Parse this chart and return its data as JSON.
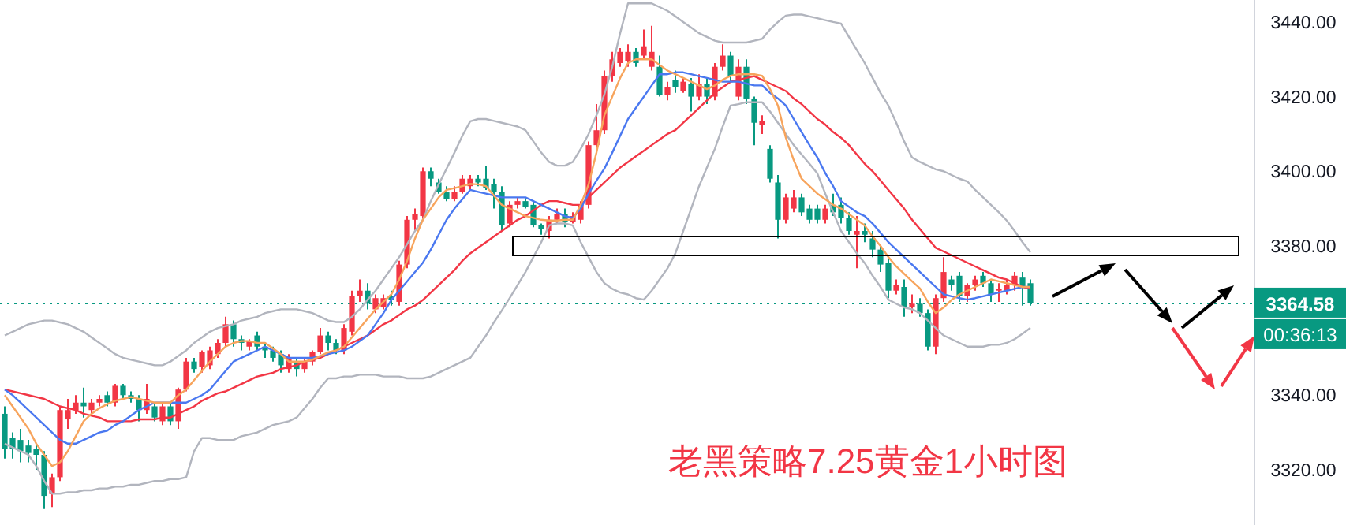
{
  "chart_data": {
    "type": "candlestick",
    "categories": [
      null,
      null,
      null,
      null,
      null,
      null,
      null,
      null,
      null,
      null,
      null,
      null,
      null,
      null,
      null,
      null,
      null,
      null,
      null,
      null,
      null,
      null,
      null,
      null,
      null,
      null,
      null,
      null,
      null,
      null,
      null,
      null,
      null,
      null,
      null,
      null,
      null,
      null,
      null,
      null,
      null,
      null,
      null,
      null,
      null,
      null,
      null,
      null,
      null,
      null,
      null,
      null,
      null,
      null,
      null,
      null,
      null,
      null,
      null,
      null,
      null,
      null,
      null,
      null,
      null,
      null,
      null,
      null,
      null,
      null,
      null,
      null,
      null,
      null,
      null,
      null,
      null,
      null,
      null,
      null,
      null,
      null,
      null,
      null,
      null,
      null,
      null,
      null,
      null,
      null,
      null,
      null,
      null,
      null,
      null,
      null,
      null,
      null,
      null,
      null,
      null,
      null,
      null,
      null,
      null,
      null,
      null,
      null,
      null,
      null,
      null,
      null,
      null,
      null,
      null,
      null,
      null,
      null,
      null,
      null,
      null,
      null,
      null,
      null,
      null,
      null,
      null,
      null,
      null,
      null,
      null
    ],
    "ohlc": [
      [
        3335,
        3337,
        3323,
        3325.5
      ],
      [
        3328.5,
        3330,
        3323,
        3325.5
      ],
      [
        3328,
        3331,
        3322,
        3325
      ],
      [
        3326.5,
        3328,
        3322,
        3324.5
      ],
      [
        3325.5,
        3327,
        3320,
        3324
      ],
      [
        3324,
        3325,
        3309.5,
        3313
      ],
      [
        3313.5,
        3319,
        3310,
        3318
      ],
      [
        3318,
        3337,
        3317,
        3336
      ],
      [
        3333.5,
        3339,
        3331,
        3336
      ],
      [
        3336,
        3340,
        3335,
        3338
      ],
      [
        3338,
        3342,
        3334,
        3337
      ],
      [
        3336,
        3339,
        3335,
        3338
      ],
      [
        3338,
        3340,
        3337,
        3339
      ],
      [
        3340,
        3341,
        3337,
        3338
      ],
      [
        3338,
        3343,
        3337,
        3342.5
      ],
      [
        3342.5,
        3343,
        3339,
        3340
      ],
      [
        3340,
        3341,
        3338,
        3339
      ],
      [
        3339,
        3340,
        3333,
        3336
      ],
      [
        3336,
        3343,
        3335,
        3339
      ],
      [
        3337,
        3338,
        3333,
        3334
      ],
      [
        3333,
        3338,
        3332,
        3337
      ],
      [
        3337,
        3338,
        3332,
        3333
      ],
      [
        3333,
        3342,
        3331,
        3341.5
      ],
      [
        3341.5,
        3350,
        3341,
        3349
      ],
      [
        3349,
        3350,
        3346,
        3347
      ],
      [
        3347.5,
        3352,
        3346,
        3351.5
      ],
      [
        3348,
        3353,
        3347,
        3352
      ],
      [
        3351,
        3355,
        3350,
        3354
      ],
      [
        3354,
        3361,
        3353,
        3359
      ],
      [
        3359,
        3360,
        3353,
        3355
      ],
      [
        3355,
        3356,
        3352,
        3354
      ],
      [
        3353,
        3355,
        3352,
        3354.5
      ],
      [
        3356,
        3357,
        3352,
        3353
      ],
      [
        3353,
        3354,
        3350,
        3352
      ],
      [
        3352,
        3353,
        3349,
        3350
      ],
      [
        3351,
        3352,
        3346,
        3348
      ],
      [
        3347,
        3351,
        3346,
        3350
      ],
      [
        3349,
        3350,
        3345,
        3347
      ],
      [
        3347,
        3350,
        3346,
        3349
      ],
      [
        3349,
        3352,
        3348,
        3351.5
      ],
      [
        3351.5,
        3358,
        3351,
        3356
      ],
      [
        3356,
        3357,
        3352,
        3354
      ],
      [
        3354,
        3355,
        3351,
        3352
      ],
      [
        3352,
        3359,
        3351,
        3358
      ],
      [
        3357,
        3368,
        3356,
        3366.5
      ],
      [
        3366.5,
        3371,
        3365,
        3368
      ],
      [
        3368,
        3370,
        3363,
        3364.5
      ],
      [
        3363,
        3367,
        3362,
        3366
      ],
      [
        3363.5,
        3367,
        3363,
        3366
      ],
      [
        3366.5,
        3368,
        3364,
        3365.5
      ],
      [
        3365,
        3376,
        3364,
        3375
      ],
      [
        3375,
        3388,
        3374,
        3387
      ],
      [
        3387,
        3390,
        3384,
        3388.5
      ],
      [
        3388,
        3401,
        3387,
        3400
      ],
      [
        3400,
        3401,
        3396,
        3398
      ],
      [
        3397,
        3398,
        3394,
        3394.5
      ],
      [
        3394.5,
        3396,
        3392,
        3392.5
      ],
      [
        3392.5,
        3396,
        3392,
        3394.5
      ],
      [
        3394.5,
        3399,
        3394,
        3398
      ],
      [
        3396,
        3399,
        3395,
        3398
      ],
      [
        3398,
        3399,
        3396,
        3397
      ],
      [
        3398,
        3401.5,
        3395,
        3395.5
      ],
      [
        3396.5,
        3398,
        3390,
        3394.5
      ],
      [
        3394.5,
        3396,
        3384,
        3385.5
      ],
      [
        3386,
        3392,
        3385,
        3391
      ],
      [
        3391,
        3393,
        3390,
        3392
      ],
      [
        3392,
        3393,
        3390,
        3390.5
      ],
      [
        3391,
        3392,
        3385,
        3385.5
      ],
      [
        3385.5,
        3386,
        3383,
        3384.5
      ],
      [
        3384,
        3388,
        3382,
        3387
      ],
      [
        3387,
        3390,
        3386,
        3388.5
      ],
      [
        3388.5,
        3390,
        3385,
        3386.5
      ],
      [
        3386.5,
        3389,
        3386,
        3388
      ],
      [
        3387,
        3392,
        3386,
        3391
      ],
      [
        3391,
        3408,
        3390,
        3407
      ],
      [
        3407,
        3418,
        3406,
        3411
      ],
      [
        3411,
        3427,
        3410,
        3425.5
      ],
      [
        3425.5,
        3432,
        3424,
        3430
      ],
      [
        3429,
        3433,
        3428,
        3432
      ],
      [
        3429.5,
        3434,
        3428,
        3432
      ],
      [
        3432,
        3433,
        3428,
        3429
      ],
      [
        3431,
        3438,
        3430,
        3433.5
      ],
      [
        3428,
        3439,
        3427,
        3432
      ],
      [
        3428,
        3431,
        3420,
        3420.5
      ],
      [
        3420.5,
        3424,
        3419,
        3422.5
      ],
      [
        3424.5,
        3427,
        3421,
        3422.5
      ],
      [
        3421.5,
        3425,
        3421,
        3424
      ],
      [
        3423.5,
        3425,
        3416,
        3420
      ],
      [
        3420,
        3426,
        3419,
        3423.5
      ],
      [
        3423.5,
        3425,
        3418,
        3420
      ],
      [
        3420,
        3429,
        3419,
        3428
      ],
      [
        3428,
        3434,
        3427,
        3431
      ],
      [
        3431,
        3432,
        3424,
        3425.5
      ],
      [
        3420,
        3430,
        3419,
        3428
      ],
      [
        3428,
        3430,
        3418,
        3419.5
      ],
      [
        3419.5,
        3420,
        3407,
        3413
      ],
      [
        3412.5,
        3415,
        3410,
        3413.5
      ],
      [
        3406,
        3407,
        3397,
        3398
      ],
      [
        3397,
        3399,
        3382,
        3387
      ],
      [
        3387,
        3394,
        3386,
        3393
      ],
      [
        3390,
        3395,
        3389,
        3393
      ],
      [
        3393,
        3394,
        3388,
        3389
      ],
      [
        3390,
        3391,
        3386,
        3387
      ],
      [
        3390,
        3391,
        3386,
        3387
      ],
      [
        3387,
        3391,
        3386,
        3390
      ],
      [
        3391,
        3394,
        3388,
        3389
      ],
      [
        3391,
        3393,
        3386,
        3387.5
      ],
      [
        3387.5,
        3389,
        3383,
        3384
      ],
      [
        3383,
        3388,
        3374,
        3384
      ],
      [
        3384,
        3386,
        3381,
        3383
      ],
      [
        3382,
        3384,
        3377,
        3379
      ],
      [
        3379,
        3380,
        3373,
        3375
      ],
      [
        3375.5,
        3377,
        3366,
        3368
      ],
      [
        3368,
        3371,
        3367,
        3369.5
      ],
      [
        3369,
        3371,
        3361,
        3363.5
      ],
      [
        3363.5,
        3367,
        3362,
        3364.5
      ],
      [
        3364.5,
        3366,
        3361,
        3362
      ],
      [
        3362,
        3363,
        3352,
        3353
      ],
      [
        3353,
        3367,
        3351,
        3366
      ],
      [
        3366,
        3377,
        3365,
        3373
      ],
      [
        3371,
        3372,
        3368,
        3369.5
      ],
      [
        3372,
        3373,
        3365,
        3366.5
      ],
      [
        3366.5,
        3370,
        3365,
        3369.5
      ],
      [
        3369.5,
        3372,
        3368,
        3371
      ],
      [
        3372,
        3373,
        3369,
        3370
      ],
      [
        3370,
        3371,
        3365,
        3367
      ],
      [
        3368,
        3370,
        3365,
        3368.5
      ],
      [
        3368,
        3371,
        3367,
        3369.5
      ],
      [
        3369.5,
        3373,
        3368,
        3372
      ],
      [
        3371.5,
        3373,
        3364,
        3369
      ],
      [
        3370,
        3371,
        3364,
        3364.58
      ]
    ],
    "series": [
      {
        "type": "line",
        "color": "#b2b5be",
        "values": [
          3356,
          3357,
          3358,
          3359,
          3359.5,
          3360,
          3360,
          3359.5,
          3359,
          3358,
          3357,
          3355.5,
          3354,
          3352.5,
          3351,
          3350,
          3349.5,
          3349,
          3348.5,
          3348,
          3348,
          3349,
          3350.5,
          3352,
          3354,
          3355.5,
          3357,
          3358,
          3358.5,
          3359,
          3360,
          3360.5,
          3361,
          3362,
          3362.5,
          3363,
          3363,
          3363,
          3362.5,
          3362,
          3361,
          3360,
          3359.6,
          3359.6,
          3361,
          3363,
          3365.6,
          3368,
          3371,
          3374,
          3377,
          3380.5,
          3384,
          3387,
          3392,
          3396.5,
          3400.7,
          3405,
          3409.5,
          3413.4,
          3414,
          3414,
          3413.5,
          3413,
          3412.5,
          3412,
          3411,
          3408,
          3405,
          3402.5,
          3401.5,
          3401.5,
          3402.5,
          3406,
          3410,
          3415,
          3420.6,
          3428,
          3437,
          3445,
          3445,
          3445,
          3445,
          3444,
          3443,
          3441.5,
          3440,
          3438.5,
          3437,
          3436,
          3435,
          3434.5,
          3434.5,
          3434.5,
          3434.5,
          3435,
          3435.5,
          3438,
          3440,
          3441.7,
          3442,
          3442,
          3441.5,
          3441,
          3440.5,
          3440,
          3439.6,
          3436,
          3432.5,
          3429,
          3425,
          3421,
          3417.6,
          3413,
          3408,
          3403.7,
          3402.5,
          3401.5,
          3400.5,
          3400,
          3399,
          3398,
          3397.3,
          3395,
          3393,
          3391,
          3389,
          3386.8,
          3384,
          3381,
          3378.3
        ]
      },
      {
        "type": "line",
        "color": "#b2b5be",
        "values": [
          3327,
          3326,
          3325,
          3324,
          3321,
          3317,
          3313.6,
          3313.6,
          3314,
          3314,
          3314.5,
          3314.5,
          3315,
          3315,
          3315.5,
          3315.5,
          3316,
          3316,
          3316.5,
          3317,
          3317,
          3317.5,
          3317.5,
          3318,
          3325,
          3328.5,
          3328.5,
          3328,
          3328,
          3328,
          3329,
          3329.5,
          3330,
          3331,
          3332,
          3332.5,
          3333,
          3334,
          3336.5,
          3339,
          3342,
          3344.5,
          3344.5,
          3345,
          3345,
          3345.5,
          3345.5,
          3345.5,
          3345,
          3345,
          3345,
          3344.5,
          3344.5,
          3344.5,
          3345,
          3346,
          3347,
          3348,
          3349,
          3350,
          3353,
          3356,
          3359.5,
          3362.7,
          3366,
          3369.5,
          3373,
          3377,
          3381,
          3385.5,
          3386,
          3386,
          3385.5,
          3381,
          3377,
          3373,
          3370,
          3368.5,
          3367.5,
          3367,
          3366,
          3365.6,
          3368,
          3371,
          3374,
          3378,
          3384,
          3390,
          3396,
          3401,
          3406,
          3412,
          3417.6,
          3418,
          3418.5,
          3418.5,
          3418.5,
          3416,
          3413,
          3410,
          3407,
          3404.5,
          3402,
          3399.4,
          3394,
          3389,
          3384,
          3381,
          3378,
          3375.4,
          3372,
          3369,
          3365.6,
          3364.5,
          3363.5,
          3363,
          3362,
          3360,
          3358,
          3356,
          3355,
          3354,
          3353,
          3353,
          3353,
          3353.5,
          3353.5,
          3354,
          3355,
          3356.5,
          3358
        ]
      },
      {
        "type": "line",
        "color": "#f23645",
        "values": [
          3341.5,
          3341,
          3340.5,
          3340,
          3339.5,
          3339,
          3338,
          3337,
          3336.5,
          3336,
          3335,
          3334.5,
          3334,
          3333,
          3333,
          3333,
          3333,
          3333.5,
          3333.5,
          3333.5,
          3334,
          3334,
          3335,
          3336,
          3337,
          3338.5,
          3339.5,
          3340.5,
          3341,
          3342,
          3343,
          3344,
          3345,
          3345.5,
          3346,
          3347,
          3347.5,
          3348,
          3349,
          3349.5,
          3350,
          3351,
          3352,
          3353,
          3354,
          3355,
          3356,
          3357.5,
          3359,
          3360,
          3361.5,
          3363,
          3364,
          3365.5,
          3367.5,
          3369.5,
          3371.5,
          3373.5,
          3376,
          3378,
          3379.5,
          3381,
          3382.5,
          3384,
          3385.5,
          3387,
          3388,
          3389.5,
          3391,
          3392,
          3392,
          3391.5,
          3391,
          3391,
          3393,
          3395,
          3397,
          3399,
          3401,
          3402.5,
          3404,
          3405.5,
          3407,
          3408.5,
          3410,
          3411,
          3413,
          3415,
          3417,
          3419,
          3421,
          3422.5,
          3424,
          3424.5,
          3425,
          3425.5,
          3424.5,
          3423.5,
          3422.5,
          3421.5,
          3419.5,
          3418,
          3416,
          3414,
          3412.5,
          3410.5,
          3409,
          3407,
          3404.5,
          3402,
          3400,
          3397.5,
          3395,
          3392.5,
          3390,
          3387,
          3384.5,
          3382,
          3379.5,
          3378.5,
          3377.5,
          3376.5,
          3375.5,
          3374.5,
          3373.5,
          3372.5,
          3371.5,
          3371,
          3370,
          3369,
          3368.5
        ]
      },
      {
        "type": "line",
        "color": "#4a78f0",
        "values": [
          3341.5,
          3340,
          3338,
          3336,
          3334,
          3332,
          3330,
          3328,
          3327,
          3327,
          3328,
          3329,
          3330,
          3330.5,
          3332,
          3333,
          3334.5,
          3336,
          3337,
          3338,
          3338,
          3338,
          3338,
          3338,
          3339,
          3340,
          3341.5,
          3344,
          3346.5,
          3349,
          3350,
          3351,
          3352,
          3353,
          3352,
          3351,
          3350,
          3350,
          3350,
          3350,
          3350.5,
          3351,
          3351.5,
          3352,
          3353,
          3354.5,
          3356,
          3359,
          3362,
          3365.5,
          3368,
          3370.5,
          3373,
          3375.5,
          3379,
          3383,
          3387,
          3390,
          3392.5,
          3395,
          3394.5,
          3394,
          3393.5,
          3393,
          3393,
          3393,
          3393,
          3392,
          3391,
          3390,
          3389,
          3388,
          3387.5,
          3390,
          3394,
          3397.5,
          3400.7,
          3405,
          3409.5,
          3414,
          3417,
          3420,
          3423,
          3426,
          3426,
          3426.5,
          3426.5,
          3426,
          3425.5,
          3425,
          3424.5,
          3424,
          3424,
          3424,
          3423.5,
          3423,
          3423,
          3421,
          3419.5,
          3417.6,
          3414,
          3410.5,
          3407,
          3403.7,
          3399.5,
          3396,
          3392,
          3390.5,
          3389,
          3388,
          3386,
          3383.5,
          3381,
          3379,
          3377,
          3375,
          3373,
          3371,
          3369,
          3367,
          3366.5,
          3366,
          3365.6,
          3366,
          3366.5,
          3367,
          3367.5,
          3368,
          3368.5,
          3369,
          3369
        ]
      },
      {
        "type": "line",
        "color": "#f7a45c",
        "values": [
          3340,
          3337,
          3334,
          3331,
          3327,
          3324,
          3321,
          3322,
          3325,
          3329,
          3333,
          3335,
          3336.5,
          3337.6,
          3338.5,
          3339,
          3339.5,
          3339,
          3338.5,
          3338,
          3338,
          3338,
          3340,
          3341.5,
          3344,
          3346.5,
          3349,
          3351,
          3353,
          3354,
          3354.5,
          3354.5,
          3354,
          3354,
          3352.5,
          3351,
          3349,
          3349,
          3349,
          3349.5,
          3350.5,
          3351.5,
          3352,
          3353,
          3355.5,
          3358,
          3360.5,
          3363,
          3365,
          3367,
          3371,
          3376,
          3382,
          3387,
          3390,
          3393,
          3395,
          3395.5,
          3396,
          3396.6,
          3396.5,
          3396,
          3393.5,
          3391,
          3390,
          3389,
          3388,
          3387.5,
          3387,
          3386.8,
          3386.8,
          3387,
          3387,
          3391,
          3396.5,
          3405,
          3415,
          3420,
          3425,
          3429,
          3430,
          3430,
          3430,
          3428.5,
          3427,
          3426,
          3425,
          3424,
          3423,
          3422,
          3423,
          3424.5,
          3425.6,
          3426,
          3426,
          3426,
          3425.6,
          3422,
          3417.6,
          3409,
          3403,
          3398,
          3396,
          3394,
          3392.5,
          3391,
          3390,
          3388.5,
          3387,
          3385.5,
          3382.5,
          3380,
          3377,
          3374.5,
          3372.5,
          3370.5,
          3368.6,
          3365,
          3362,
          3363.5,
          3365.5,
          3367,
          3368,
          3369,
          3370,
          3371,
          3370.5,
          3370,
          3369.5,
          3369,
          3369
        ]
      }
    ],
    "ylim": [
      3305.2,
      3445.9
    ],
    "yticks": [
      {
        "value": 3320,
        "label": "3320.00"
      },
      {
        "value": 3340,
        "label": "3340.00"
      },
      {
        "value": 3380,
        "label": "3380.00"
      },
      {
        "value": 3400,
        "label": "3400.00"
      },
      {
        "value": 3420,
        "label": "3420.00"
      },
      {
        "value": 3440,
        "label": "3440.00"
      }
    ],
    "ref_lines": [
      {
        "axis": "y",
        "value": 3364.58,
        "label": "3364.58",
        "color": "#089981",
        "line_style": "dotted"
      }
    ],
    "annotations": [
      "00:36:13",
      "老黑策略7.25黄金1小时图"
    ]
  }
}
